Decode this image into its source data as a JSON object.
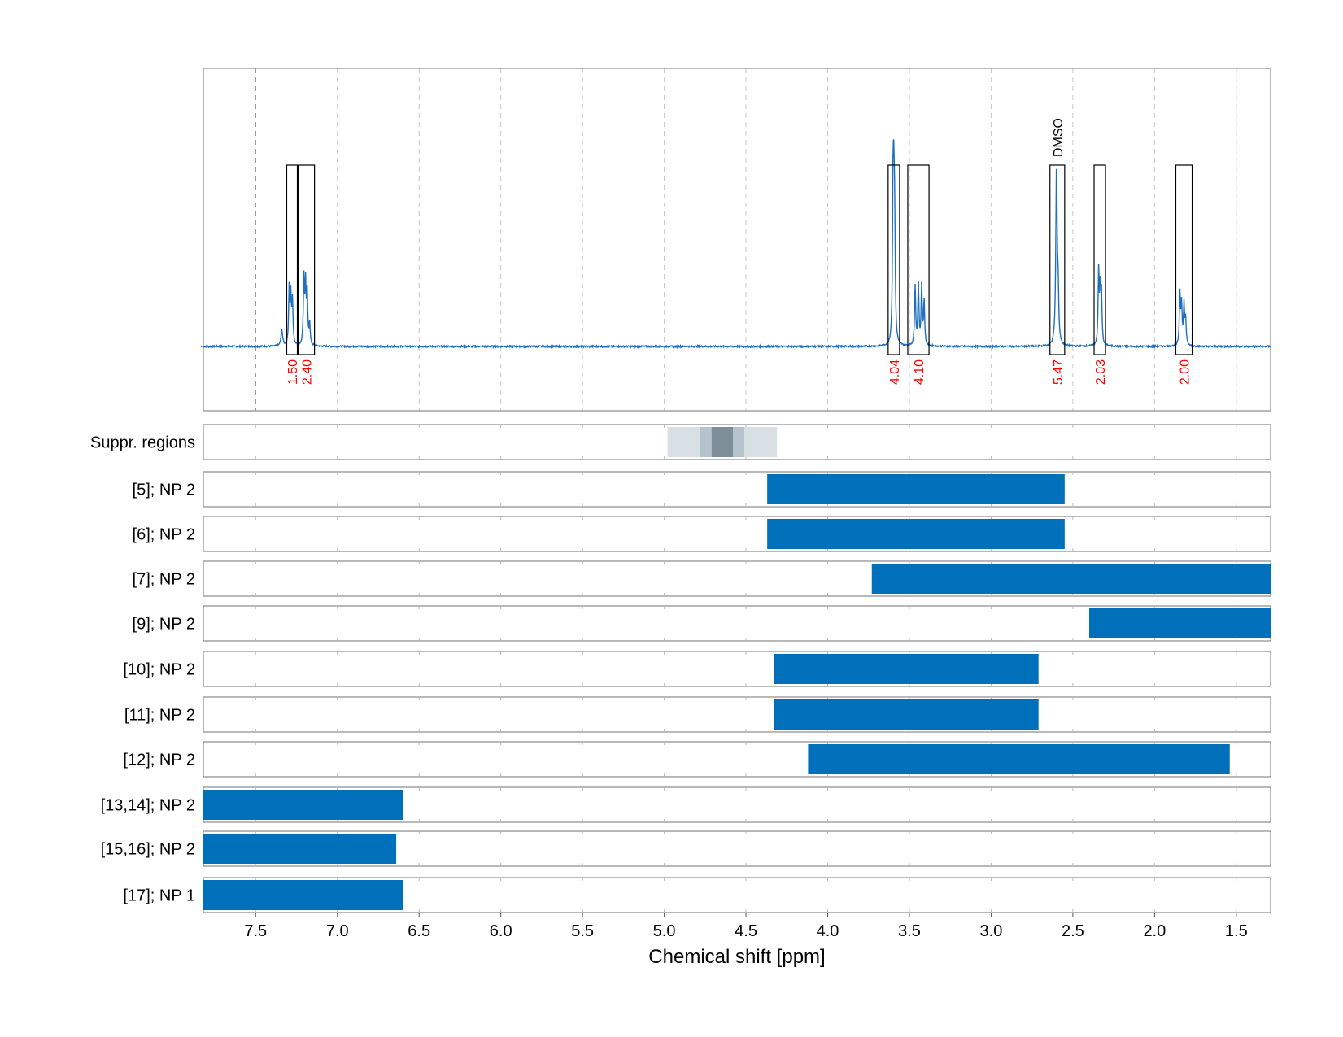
{
  "chart_data": {
    "type": "line",
    "xlabel": "Chemical shift [ppm]",
    "xlim": [
      7.82,
      1.29
    ],
    "x_ticks": [
      "7.5",
      "7.0",
      "6.5",
      "6.0",
      "5.5",
      "5.0",
      "4.5",
      "4.0",
      "3.5",
      "3.0",
      "2.5",
      "2.0",
      "1.5"
    ],
    "x_tick_values": [
      7.5,
      7.0,
      6.5,
      6.0,
      5.5,
      5.0,
      4.5,
      4.0,
      3.5,
      3.0,
      2.5,
      2.0,
      1.5
    ],
    "grid": true,
    "colors": {
      "spectrum": "#1f6fbf",
      "bar": "#0070bb",
      "integral_text": "#ff0000"
    },
    "spectrum": {
      "peaks": [
        {
          "ppm": 7.34,
          "height": 0.08,
          "width": 0.006
        },
        {
          "ppm": 7.295,
          "height": 0.28,
          "width": 0.004
        },
        {
          "ppm": 7.285,
          "height": 0.23,
          "width": 0.004
        },
        {
          "ppm": 7.275,
          "height": 0.22,
          "width": 0.004
        },
        {
          "ppm": 7.205,
          "height": 0.33,
          "width": 0.004
        },
        {
          "ppm": 7.195,
          "height": 0.29,
          "width": 0.004
        },
        {
          "ppm": 7.185,
          "height": 0.25,
          "width": 0.004
        },
        {
          "ppm": 7.17,
          "height": 0.11,
          "width": 0.004
        },
        {
          "ppm": 3.6,
          "height": 0.71,
          "width": 0.004
        },
        {
          "ppm": 3.595,
          "height": 0.57,
          "width": 0.004
        },
        {
          "ppm": 3.59,
          "height": 0.48,
          "width": 0.004
        },
        {
          "ppm": 3.465,
          "height": 0.3,
          "width": 0.004
        },
        {
          "ppm": 3.445,
          "height": 0.3,
          "width": 0.004
        },
        {
          "ppm": 3.425,
          "height": 0.3,
          "width": 0.004
        },
        {
          "ppm": 3.41,
          "height": 0.22,
          "width": 0.004
        },
        {
          "ppm": 2.6,
          "height": 0.9,
          "width": 0.005
        },
        {
          "ppm": 2.59,
          "height": 0.23,
          "width": 0.004
        },
        {
          "ppm": 2.342,
          "height": 0.37,
          "width": 0.004
        },
        {
          "ppm": 2.332,
          "height": 0.25,
          "width": 0.004
        },
        {
          "ppm": 2.325,
          "height": 0.23,
          "width": 0.004
        },
        {
          "ppm": 1.845,
          "height": 0.26,
          "width": 0.004
        },
        {
          "ppm": 1.835,
          "height": 0.2,
          "width": 0.004
        },
        {
          "ppm": 1.82,
          "height": 0.2,
          "width": 0.004
        },
        {
          "ppm": 1.81,
          "height": 0.13,
          "width": 0.004
        }
      ]
    },
    "integrals": [
      {
        "from": 7.31,
        "to": 7.245,
        "label": "1.50"
      },
      {
        "from": 7.24,
        "to": 7.14,
        "label": "2.40"
      },
      {
        "from": 3.63,
        "to": 3.56,
        "label": "4.04"
      },
      {
        "from": 3.51,
        "to": 3.38,
        "label": "4.10"
      },
      {
        "from": 2.64,
        "to": 2.55,
        "label": "5.47",
        "annotation": "DMSO"
      },
      {
        "from": 2.37,
        "to": 2.3,
        "label": "2.03"
      },
      {
        "from": 1.87,
        "to": 1.77,
        "label": "2.00"
      }
    ],
    "suppressed_regions": [
      {
        "from": 4.98,
        "to": 4.31,
        "shade": "#d8e0e6"
      },
      {
        "from": 4.78,
        "to": 4.51,
        "shade": "#b5c3cc"
      },
      {
        "from": 4.71,
        "to": 4.58,
        "shade": "#7d8e99"
      }
    ],
    "suppressed_label": "Suppr. regions",
    "bars": [
      {
        "label": "[5]; NP 2",
        "from": 4.37,
        "to": 2.55
      },
      {
        "label": "[6]; NP 2",
        "from": 4.37,
        "to": 2.55
      },
      {
        "label": "[7]; NP 2",
        "from": 3.73,
        "to": 1.29
      },
      {
        "label": "[9]; NP 2",
        "from": 2.4,
        "to": 1.29
      },
      {
        "label": "[10]; NP 2",
        "from": 4.33,
        "to": 2.71
      },
      {
        "label": "[11]; NP 2",
        "from": 4.33,
        "to": 2.71
      },
      {
        "label": "[12]; NP 2",
        "from": 4.12,
        "to": 1.54
      },
      {
        "label": "[13,14]; NP 2",
        "from": 7.82,
        "to": 6.6
      },
      {
        "label": "[15,16]; NP 2",
        "from": 7.82,
        "to": 6.64
      },
      {
        "label": "[17]; NP 1",
        "from": 7.82,
        "to": 6.6
      }
    ]
  }
}
